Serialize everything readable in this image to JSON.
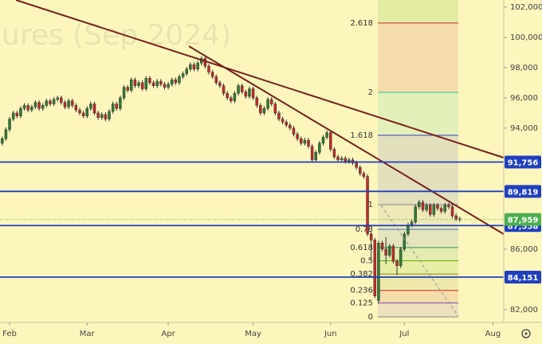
{
  "chart_data": {
    "type": "candlestick",
    "watermark": "ures (Sep 2024)",
    "up_color": "#2e7d32",
    "down_color": "#c62828",
    "open": [
      93000,
      93300,
      93900,
      94600,
      95000,
      94800,
      95300,
      95500,
      95200,
      95400,
      95700,
      95300,
      95500,
      95800,
      95600,
      95900,
      96000,
      95700,
      95400,
      95800,
      95500,
      95200,
      95000,
      94800,
      95300,
      95600,
      95000,
      94700,
      94900,
      94600,
      95100,
      95600,
      95300,
      96000,
      96700,
      96500,
      97200,
      96800,
      97000,
      96600,
      97300,
      97000,
      96800,
      97100,
      96900,
      96700,
      96900,
      97200,
      97000,
      97400,
      97600,
      97900,
      98200,
      97900,
      98300,
      98600,
      98100,
      97700,
      97400,
      97000,
      96800,
      96300,
      96000,
      95800,
      96300,
      96800,
      96400,
      96100,
      96600,
      96000,
      95500,
      95000,
      95300,
      95900,
      95600,
      95000,
      94600,
      94400,
      94200,
      94000,
      93600,
      93300,
      93000,
      93200,
      92800,
      91900,
      92400,
      93000,
      93400,
      93700,
      92600,
      92100,
      91900,
      92000,
      91800,
      91900,
      91700,
      91400,
      91000,
      90800,
      87000,
      86600,
      82600,
      86400,
      86000,
      85600,
      86200,
      85200,
      84900,
      86000,
      87000,
      87600,
      87800,
      88800,
      89100,
      88600,
      88900,
      88300,
      88900,
      88700,
      88500,
      88900,
      88800,
      88200,
      88000
    ],
    "high": [
      93450,
      94050,
      94750,
      95150,
      95150,
      95450,
      95650,
      95650,
      95550,
      95850,
      95850,
      95650,
      95950,
      95950,
      96050,
      96150,
      96150,
      95850,
      95950,
      95950,
      95650,
      95350,
      95150,
      95450,
      95750,
      95750,
      95150,
      95050,
      95050,
      95250,
      95750,
      95750,
      96150,
      96850,
      96850,
      97350,
      97350,
      97150,
      97150,
      97450,
      97450,
      97150,
      97250,
      97250,
      97050,
      97050,
      97350,
      97350,
      97550,
      97750,
      98050,
      98350,
      98350,
      98450,
      98750,
      98750,
      98250,
      97850,
      97550,
      97150,
      96950,
      96450,
      96150,
      96450,
      96950,
      96950,
      96550,
      96750,
      96750,
      96150,
      95650,
      95450,
      96050,
      96050,
      95750,
      95150,
      94750,
      94550,
      94350,
      94150,
      93750,
      93450,
      93350,
      93350,
      92950,
      92550,
      93150,
      93550,
      93850,
      93850,
      92750,
      92250,
      92150,
      92150,
      92050,
      92050,
      91850,
      91550,
      91150,
      90950,
      87150,
      86750,
      86550,
      86550,
      86800,
      86350,
      86350,
      85350,
      86150,
      87150,
      87750,
      87950,
      88950,
      89250,
      89250,
      89050,
      89050,
      89050,
      89050,
      88850,
      89050,
      89050,
      88950,
      88350,
      88150
    ],
    "low": [
      92850,
      93150,
      93750,
      94450,
      94650,
      94650,
      95150,
      95050,
      95050,
      95250,
      95150,
      95150,
      95350,
      95450,
      95450,
      95750,
      95550,
      95250,
      95250,
      95350,
      95050,
      94850,
      94650,
      94650,
      95150,
      94850,
      94550,
      94550,
      94450,
      94450,
      94950,
      95150,
      95150,
      95850,
      96350,
      96350,
      96650,
      96650,
      96450,
      96450,
      96850,
      96650,
      96650,
      96750,
      96550,
      96550,
      96750,
      96850,
      96850,
      97250,
      97450,
      97750,
      97750,
      97750,
      98150,
      97950,
      97550,
      97250,
      96850,
      96650,
      96150,
      95850,
      95650,
      95650,
      96150,
      96250,
      95950,
      95950,
      95850,
      95350,
      94850,
      94850,
      95150,
      95450,
      94850,
      94450,
      94250,
      94050,
      93850,
      93450,
      93150,
      92850,
      92850,
      92650,
      91750,
      91750,
      92250,
      92850,
      93250,
      92450,
      91950,
      91750,
      91750,
      91650,
      91650,
      91550,
      91250,
      90850,
      90650,
      86850,
      85300,
      82750,
      82400,
      85850,
      85000,
      85450,
      85050,
      84300,
      84750,
      85850,
      86850,
      87450,
      87650,
      88650,
      88450,
      88450,
      88150,
      88150,
      88550,
      88350,
      88350,
      88650,
      88050,
      87850,
      87800
    ],
    "close": [
      93300,
      93900,
      94600,
      95000,
      94800,
      95300,
      95500,
      95200,
      95400,
      95700,
      95300,
      95500,
      95800,
      95600,
      95900,
      96000,
      95700,
      95400,
      95800,
      95500,
      95200,
      95000,
      94800,
      95300,
      95600,
      95000,
      94700,
      94900,
      94600,
      95100,
      95600,
      95300,
      96000,
      96700,
      96500,
      97200,
      96800,
      97000,
      96600,
      97300,
      97000,
      96800,
      97100,
      96900,
      96700,
      96900,
      97200,
      97000,
      97400,
      97600,
      97900,
      98200,
      97900,
      98300,
      98600,
      98100,
      97700,
      97400,
      97000,
      96800,
      96300,
      96000,
      95800,
      96300,
      96800,
      96400,
      96100,
      96600,
      96000,
      95500,
      95000,
      95300,
      95900,
      95600,
      95000,
      94600,
      94400,
      94200,
      94000,
      93600,
      93300,
      93000,
      93200,
      92800,
      91900,
      92400,
      93000,
      93400,
      93700,
      92600,
      92100,
      91900,
      92000,
      91800,
      91900,
      91700,
      91400,
      91000,
      90800,
      87000,
      86600,
      82900,
      86400,
      86000,
      85600,
      86200,
      85200,
      84900,
      86000,
      87000,
      87600,
      87800,
      88800,
      89100,
      88600,
      88900,
      88300,
      88900,
      88700,
      88500,
      88900,
      88800,
      88200,
      88000,
      87959
    ],
    "xlim": [
      -0.6,
      135.5
    ],
    "xticks": [
      {
        "value": 2,
        "label": "Feb"
      },
      {
        "value": 23,
        "label": "Mar"
      },
      {
        "value": 45,
        "label": "Apr"
      },
      {
        "value": 68,
        "label": "May"
      },
      {
        "value": 89,
        "label": "Jun"
      },
      {
        "value": 109,
        "label": "Jul"
      },
      {
        "value": 133,
        "label": "Aug"
      }
    ],
    "ylim": [
      81150,
      102470
    ],
    "yticks": [
      {
        "value": 102000,
        "label": "102,000"
      },
      {
        "value": 100000,
        "label": "100,000"
      },
      {
        "value": 98000,
        "label": "98,000"
      },
      {
        "value": 96000,
        "label": "96,000"
      },
      {
        "value": 94000,
        "label": "94,000"
      },
      {
        "value": 86000,
        "label": "86,000"
      },
      {
        "value": 82000,
        "label": "82,000"
      }
    ],
    "price_lines": [
      {
        "value": 91756,
        "label": "91,756",
        "color": "#1f3fbf"
      },
      {
        "value": 89819,
        "label": "89,819",
        "color": "#1f3fbf"
      },
      {
        "value": 87558,
        "label": "87,558",
        "color": "#1f3fbf"
      },
      {
        "value": 84151,
        "label": "84,151",
        "color": "#1f3fbf"
      }
    ],
    "last_price": {
      "value": 87959,
      "label": "87,959",
      "color": "#4caf50"
    },
    "fib_levels": [
      {
        "level": 0,
        "color": "#888888"
      },
      {
        "level": 0.125,
        "color": "#7b4bb5"
      },
      {
        "level": 0.236,
        "color": "#c62828"
      },
      {
        "level": 0.382,
        "color": "#8a8a20"
      },
      {
        "level": 0.5,
        "color": "#5ab000"
      },
      {
        "level": 0.618,
        "color": "#2e9b4a"
      },
      {
        "level": 0.78,
        "color": "#3a6fbf"
      },
      {
        "level": 1,
        "color": "#888888"
      },
      {
        "level": 1.618,
        "color": "#2a3fbf"
      },
      {
        "level": 2,
        "color": "#2ec4a0"
      },
      {
        "level": 2.618,
        "color": "#c62828"
      }
    ]
  }
}
